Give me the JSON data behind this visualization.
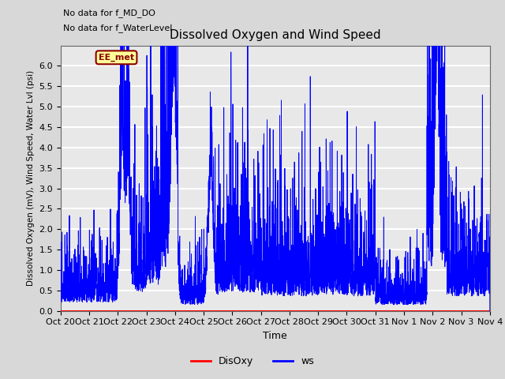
{
  "title": "Dissolved Oxygen and Wind Speed",
  "xlabel": "Time",
  "ylabel": "Dissolved Oxygen (mV), Wind Speed, Water Lvl (psi)",
  "ylim": [
    0.0,
    6.5
  ],
  "yticks": [
    0.0,
    0.5,
    1.0,
    1.5,
    2.0,
    2.5,
    3.0,
    3.5,
    4.0,
    4.5,
    5.0,
    5.5,
    6.0
  ],
  "xtick_labels": [
    "Oct 20",
    "Oct 21",
    "Oct 22",
    "Oct 23",
    "Oct 24",
    "Oct 25",
    "Oct 26",
    "Oct 27",
    "Oct 28",
    "Oct 29",
    "Oct 30",
    "Oct 31",
    "Nov 1",
    "Nov 2",
    "Nov 3",
    "Nov 4"
  ],
  "text_no_data1": "No data for f_MD_DO",
  "text_no_data2": "No data for f_WaterLevel",
  "legend_label_EE": "EE_met",
  "legend_label_disoxy": "DisOxy",
  "legend_label_ws": "ws",
  "line_color_disoxy": "red",
  "line_color_ws": "blue",
  "bg_color": "#d8d8d8",
  "plot_bg": "#e8e8e8",
  "grid_color": "white",
  "seed": 42,
  "n_points": 3360
}
